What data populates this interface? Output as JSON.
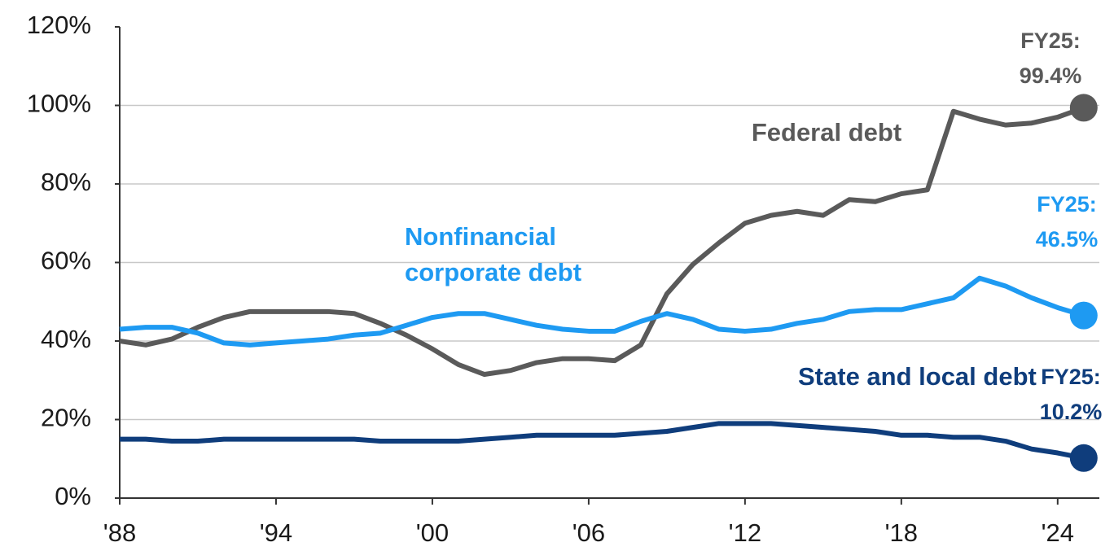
{
  "chart_data": {
    "type": "line",
    "x": [
      1988,
      1989,
      1990,
      1991,
      1992,
      1993,
      1994,
      1995,
      1996,
      1997,
      1998,
      1999,
      2000,
      2001,
      2002,
      2003,
      2004,
      2005,
      2006,
      2007,
      2008,
      2009,
      2010,
      2011,
      2012,
      2013,
      2014,
      2015,
      2016,
      2017,
      2018,
      2019,
      2020,
      2021,
      2022,
      2023,
      2024,
      2025
    ],
    "series": [
      {
        "name": "Federal debt",
        "color": "#5a5a5a",
        "values": [
          40,
          39,
          40.5,
          43.5,
          46,
          47.5,
          47.5,
          47.5,
          47.5,
          47,
          44.5,
          41.5,
          38,
          34,
          31.5,
          32.5,
          34.5,
          35.5,
          35.5,
          35,
          39,
          52,
          59.5,
          65,
          70,
          72,
          73,
          72,
          76,
          75.5,
          77.5,
          78.5,
          98.5,
          96.5,
          95,
          95.5,
          97,
          99.4
        ],
        "value_labels": [
          null,
          null,
          null,
          null,
          null,
          null,
          null,
          null,
          null,
          null,
          null,
          null,
          null,
          null,
          null,
          null,
          null,
          null,
          null,
          null,
          null,
          null,
          null,
          null,
          null,
          null,
          null,
          null,
          null,
          null,
          null,
          null,
          null,
          null,
          null,
          null,
          null,
          "99.4%"
        ]
      },
      {
        "name": [
          "Nonfinancial",
          "corporate debt"
        ],
        "color": "#1e9af2",
        "values": [
          43,
          43.5,
          43.5,
          42,
          39.5,
          39,
          39.5,
          40,
          40.5,
          41.5,
          42,
          44,
          46,
          47,
          47,
          45.5,
          44,
          43,
          42.5,
          42.5,
          45,
          47,
          45.5,
          43,
          42.5,
          43,
          44.5,
          45.5,
          47.5,
          48,
          48,
          49.5,
          51,
          56,
          54,
          51,
          48.5,
          46.5
        ],
        "value_labels": [
          null,
          null,
          null,
          null,
          null,
          null,
          null,
          null,
          null,
          null,
          null,
          null,
          null,
          null,
          null,
          null,
          null,
          null,
          null,
          null,
          null,
          null,
          null,
          null,
          null,
          null,
          null,
          null,
          null,
          null,
          null,
          null,
          null,
          null,
          null,
          null,
          null,
          "46.5%"
        ]
      },
      {
        "name": "State and local debt",
        "color": "#0f3d7c",
        "values": [
          15,
          15,
          14.5,
          14.5,
          15,
          15,
          15,
          15,
          15,
          15,
          14.5,
          14.5,
          14.5,
          14.5,
          15,
          15.5,
          16,
          16,
          16,
          16,
          16.5,
          17,
          18,
          19,
          19,
          19,
          18.5,
          18,
          17.5,
          17,
          16,
          16,
          15.5,
          15.5,
          14.5,
          12.5,
          11.5,
          10.2
        ],
        "value_labels": [
          null,
          null,
          null,
          null,
          null,
          null,
          null,
          null,
          null,
          null,
          null,
          null,
          null,
          null,
          null,
          null,
          null,
          null,
          null,
          null,
          null,
          null,
          null,
          null,
          null,
          null,
          null,
          null,
          null,
          null,
          null,
          null,
          null,
          null,
          null,
          null,
          null,
          "10.2%"
        ]
      }
    ],
    "end_label_prefix": "FY25:",
    "xlim": [
      1988,
      2025.6
    ],
    "xticks": [
      {
        "value": 1988,
        "label": "'88"
      },
      {
        "value": 1994,
        "label": "'94"
      },
      {
        "value": 2000,
        "label": "'00"
      },
      {
        "value": 2006,
        "label": "'06"
      },
      {
        "value": 2012,
        "label": "'12"
      },
      {
        "value": 2018,
        "label": "'18"
      },
      {
        "value": 2024,
        "label": "'24"
      }
    ],
    "ylim": [
      0,
      120
    ],
    "yticks": [
      {
        "value": 0,
        "label": "0%"
      },
      {
        "value": 20,
        "label": "20%"
      },
      {
        "value": 40,
        "label": "40%"
      },
      {
        "value": 60,
        "label": "60%"
      },
      {
        "value": 80,
        "label": "80%"
      },
      {
        "value": 100,
        "label": "100%"
      },
      {
        "value": 120,
        "label": "120%"
      }
    ],
    "grid": true
  }
}
